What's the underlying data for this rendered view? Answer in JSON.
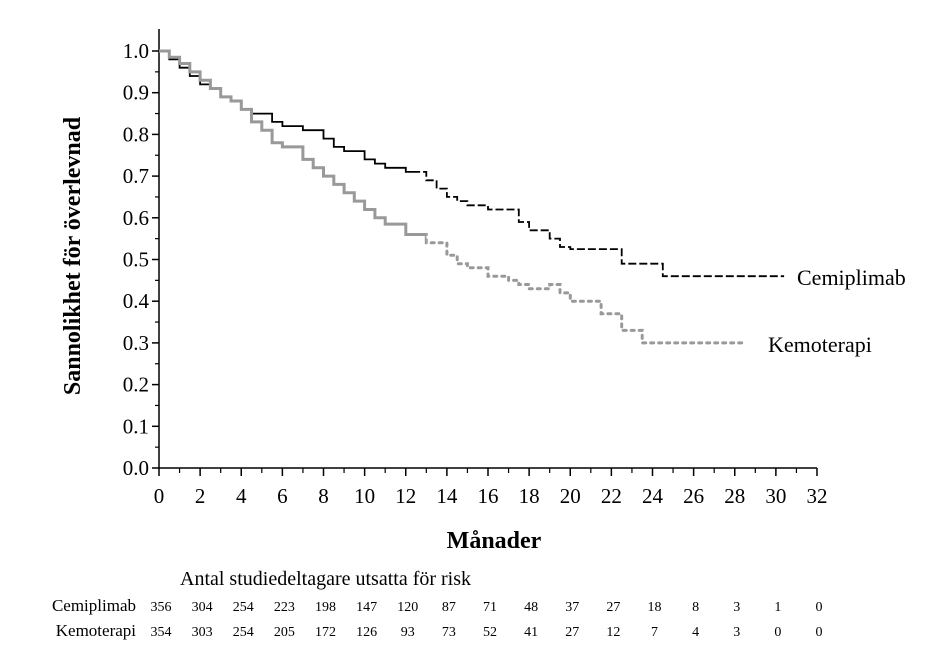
{
  "chart_data": {
    "type": "line",
    "subtype": "kaplan-meier",
    "title": "",
    "xlabel": "Månader",
    "ylabel": "Sannolikhet för överlevnad",
    "xlim": [
      0,
      32
    ],
    "ylim": [
      0.0,
      1.0
    ],
    "x_ticks": [
      "0",
      "2",
      "4",
      "6",
      "8",
      "10",
      "12",
      "14",
      "16",
      "18",
      "20",
      "22",
      "24",
      "26",
      "28",
      "30",
      "32"
    ],
    "y_ticks": [
      "0.0",
      "0.1",
      "0.2",
      "0.3",
      "0.4",
      "0.5",
      "0.6",
      "0.7",
      "0.8",
      "0.9",
      "1.0"
    ],
    "grid": false,
    "series": [
      {
        "name": "Cemiplimab",
        "label": "Cemiplimab",
        "color": "#000000",
        "points": [
          [
            0,
            1.0
          ],
          [
            0.5,
            0.98
          ],
          [
            1,
            0.96
          ],
          [
            1.5,
            0.94
          ],
          [
            2,
            0.92
          ],
          [
            2.5,
            0.91
          ],
          [
            3,
            0.89
          ],
          [
            3.5,
            0.88
          ],
          [
            4,
            0.86
          ],
          [
            4.5,
            0.85
          ],
          [
            5,
            0.85
          ],
          [
            5.5,
            0.83
          ],
          [
            6,
            0.82
          ],
          [
            7,
            0.81
          ],
          [
            8,
            0.79
          ],
          [
            8.5,
            0.77
          ],
          [
            9,
            0.76
          ],
          [
            10,
            0.74
          ],
          [
            10.5,
            0.73
          ],
          [
            11,
            0.72
          ],
          [
            12,
            0.71
          ],
          [
            13,
            0.69
          ],
          [
            13.5,
            0.67
          ],
          [
            14,
            0.65
          ],
          [
            14.5,
            0.64
          ],
          [
            15,
            0.63
          ],
          [
            16,
            0.62
          ],
          [
            17,
            0.62
          ],
          [
            17.5,
            0.59
          ],
          [
            18,
            0.57
          ],
          [
            19,
            0.55
          ],
          [
            19.5,
            0.53
          ],
          [
            20,
            0.525
          ],
          [
            21,
            0.525
          ],
          [
            22,
            0.525
          ],
          [
            22.5,
            0.49
          ],
          [
            23,
            0.49
          ],
          [
            24,
            0.49
          ],
          [
            24.5,
            0.46
          ],
          [
            25,
            0.46
          ],
          [
            27,
            0.46
          ],
          [
            30,
            0.46
          ],
          [
            30.4,
            0.46
          ]
        ]
      },
      {
        "name": "Kemoterapi",
        "label": "Kemoterapi",
        "color": "#999999",
        "points": [
          [
            0,
            1.0
          ],
          [
            0.5,
            0.985
          ],
          [
            1,
            0.97
          ],
          [
            1.5,
            0.95
          ],
          [
            2,
            0.93
          ],
          [
            2.5,
            0.91
          ],
          [
            3,
            0.89
          ],
          [
            3.5,
            0.88
          ],
          [
            4,
            0.86
          ],
          [
            4.5,
            0.83
          ],
          [
            5,
            0.81
          ],
          [
            5.5,
            0.78
          ],
          [
            6,
            0.77
          ],
          [
            7,
            0.74
          ],
          [
            7.5,
            0.72
          ],
          [
            8,
            0.7
          ],
          [
            8.5,
            0.68
          ],
          [
            9,
            0.66
          ],
          [
            9.5,
            0.64
          ],
          [
            10,
            0.62
          ],
          [
            10.5,
            0.6
          ],
          [
            11,
            0.585
          ],
          [
            12,
            0.56
          ],
          [
            13,
            0.54
          ],
          [
            14,
            0.51
          ],
          [
            14.5,
            0.49
          ],
          [
            15,
            0.48
          ],
          [
            16,
            0.46
          ],
          [
            17,
            0.45
          ],
          [
            17.5,
            0.44
          ],
          [
            18,
            0.43
          ],
          [
            19,
            0.44
          ],
          [
            19.5,
            0.42
          ],
          [
            20,
            0.4
          ],
          [
            21,
            0.4
          ],
          [
            21.5,
            0.37
          ],
          [
            22,
            0.37
          ],
          [
            22.5,
            0.33
          ],
          [
            23,
            0.33
          ],
          [
            23.5,
            0.3
          ],
          [
            25,
            0.3
          ],
          [
            27,
            0.3
          ],
          [
            28.5,
            0.3
          ]
        ]
      }
    ],
    "at_risk": {
      "title": "Antal studiedeltagare utsatta för risk",
      "rows": [
        {
          "name": "Cemiplimab",
          "values": [
            "356",
            "304",
            "254",
            "223",
            "198",
            "147",
            "120",
            "87",
            "71",
            "48",
            "37",
            "27",
            "18",
            "8",
            "3",
            "1",
            "0"
          ]
        },
        {
          "name": "Kemoterapi",
          "values": [
            "354",
            "303",
            "254",
            "205",
            "172",
            "126",
            "93",
            "73",
            "52",
            "41",
            "27",
            "12",
            "7",
            "4",
            "3",
            "0",
            "0"
          ]
        }
      ]
    }
  }
}
